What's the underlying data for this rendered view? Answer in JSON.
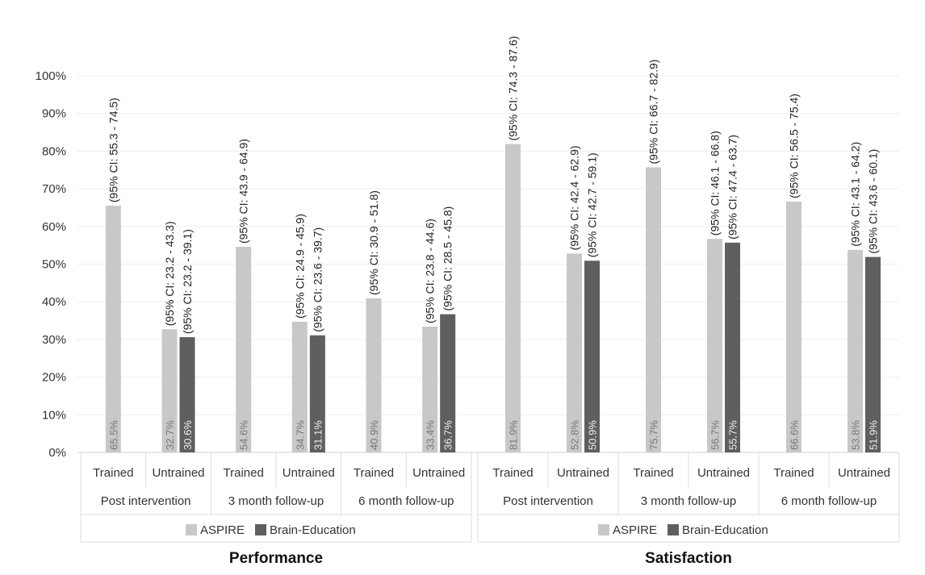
{
  "colors": {
    "aspire": "#c8c8c8",
    "brain_education": "#5f5f5f",
    "grid": "#eeeeee",
    "axis_text": "#333333",
    "label_dark": "#444444",
    "label_light": "#eeeeee",
    "frame": "#dddddd"
  },
  "y_axis": {
    "ticks": [
      "0%",
      "10%",
      "20%",
      "30%",
      "40%",
      "50%",
      "60%",
      "70%",
      "80%",
      "90%",
      "100%"
    ]
  },
  "legend": {
    "aspire": "ASPIRE",
    "brain_education": "Brain-Education"
  },
  "chart_data": [
    {
      "type": "bar",
      "title": "Performance",
      "ylim": [
        0,
        100
      ],
      "grid": true,
      "legend_position": "bottom",
      "groups": [
        {
          "label": "Post intervention",
          "subgroups": [
            {
              "label": "Trained",
              "bars": [
                {
                  "series": "ASPIRE",
                  "value": 65.5,
                  "label": "65.5%",
                  "ci": "(95% CI: 55.3 - 74.5)"
                }
              ]
            },
            {
              "label": "Untrained",
              "bars": [
                {
                  "series": "ASPIRE",
                  "value": 32.7,
                  "label": "32.7%",
                  "ci": "(95% CI: 23.2 - 43.3)"
                },
                {
                  "series": "Brain-Education",
                  "value": 30.6,
                  "label": "30.6%",
                  "ci": "(95% CI: 23.2 - 39.1)"
                }
              ]
            }
          ]
        },
        {
          "label": "3 month follow-up",
          "subgroups": [
            {
              "label": "Trained",
              "bars": [
                {
                  "series": "ASPIRE",
                  "value": 54.6,
                  "label": "54.6%",
                  "ci": "(95% CI: 43.9 - 64.9)"
                }
              ]
            },
            {
              "label": "Untrained",
              "bars": [
                {
                  "series": "ASPIRE",
                  "value": 34.7,
                  "label": "34.7%",
                  "ci": "(95% CI: 24.9 - 45.9)"
                },
                {
                  "series": "Brain-Education",
                  "value": 31.1,
                  "label": "31.1%",
                  "ci": "(95% CI: 23.6 - 39.7)"
                }
              ]
            }
          ]
        },
        {
          "label": "6 month follow-up",
          "subgroups": [
            {
              "label": "Trained",
              "bars": [
                {
                  "series": "ASPIRE",
                  "value": 40.9,
                  "label": "40.9%",
                  "ci": "(95% CI: 30.9 - 51.8)"
                }
              ]
            },
            {
              "label": "Untrained",
              "bars": [
                {
                  "series": "ASPIRE",
                  "value": 33.4,
                  "label": "33.4%",
                  "ci": "(95% CI: 23.8 - 44.6)"
                },
                {
                  "series": "Brain-Education",
                  "value": 36.7,
                  "label": "36.7%",
                  "ci": "(95% CI: 28.5 - 45.8)"
                }
              ]
            }
          ]
        }
      ]
    },
    {
      "type": "bar",
      "title": "Satisfaction",
      "ylim": [
        0,
        100
      ],
      "grid": true,
      "legend_position": "bottom",
      "groups": [
        {
          "label": "Post intervention",
          "subgroups": [
            {
              "label": "Trained",
              "bars": [
                {
                  "series": "ASPIRE",
                  "value": 81.9,
                  "label": "81.9%",
                  "ci": "(95% CI: 74.3 - 87.6)"
                }
              ]
            },
            {
              "label": "Untrained",
              "bars": [
                {
                  "series": "ASPIRE",
                  "value": 52.8,
                  "label": "52.8%",
                  "ci": "(95% CI: 42.4 - 62.9)"
                },
                {
                  "series": "Brain-Education",
                  "value": 50.9,
                  "label": "50.9%",
                  "ci": "(95% CI: 42.7 - 59.1)"
                }
              ]
            }
          ]
        },
        {
          "label": "3 month follow-up",
          "subgroups": [
            {
              "label": "Trained",
              "bars": [
                {
                  "series": "ASPIRE",
                  "value": 75.7,
                  "label": "75.7%",
                  "ci": "(95% CI: 66.7 - 82.9)"
                }
              ]
            },
            {
              "label": "Untrained",
              "bars": [
                {
                  "series": "ASPIRE",
                  "value": 56.7,
                  "label": "56.7%",
                  "ci": "(95% CI: 46.1 - 66.8)"
                },
                {
                  "series": "Brain-Education",
                  "value": 55.7,
                  "label": "55.7%",
                  "ci": "(95% CI: 47.4 - 63.7)"
                }
              ]
            }
          ]
        },
        {
          "label": "6 month follow-up",
          "subgroups": [
            {
              "label": "Trained",
              "bars": [
                {
                  "series": "ASPIRE",
                  "value": 66.6,
                  "label": "66.6%",
                  "ci": "(95% CI: 56.5 - 75.4)"
                }
              ]
            },
            {
              "label": "Untrained",
              "bars": [
                {
                  "series": "ASPIRE",
                  "value": 53.8,
                  "label": "53.8%",
                  "ci": "(95% CI: 43.1 - 64.2)"
                },
                {
                  "series": "Brain-Education",
                  "value": 51.9,
                  "label": "51.9%",
                  "ci": "(95% CI: 43.6 - 60.1)"
                }
              ]
            }
          ]
        }
      ]
    }
  ]
}
